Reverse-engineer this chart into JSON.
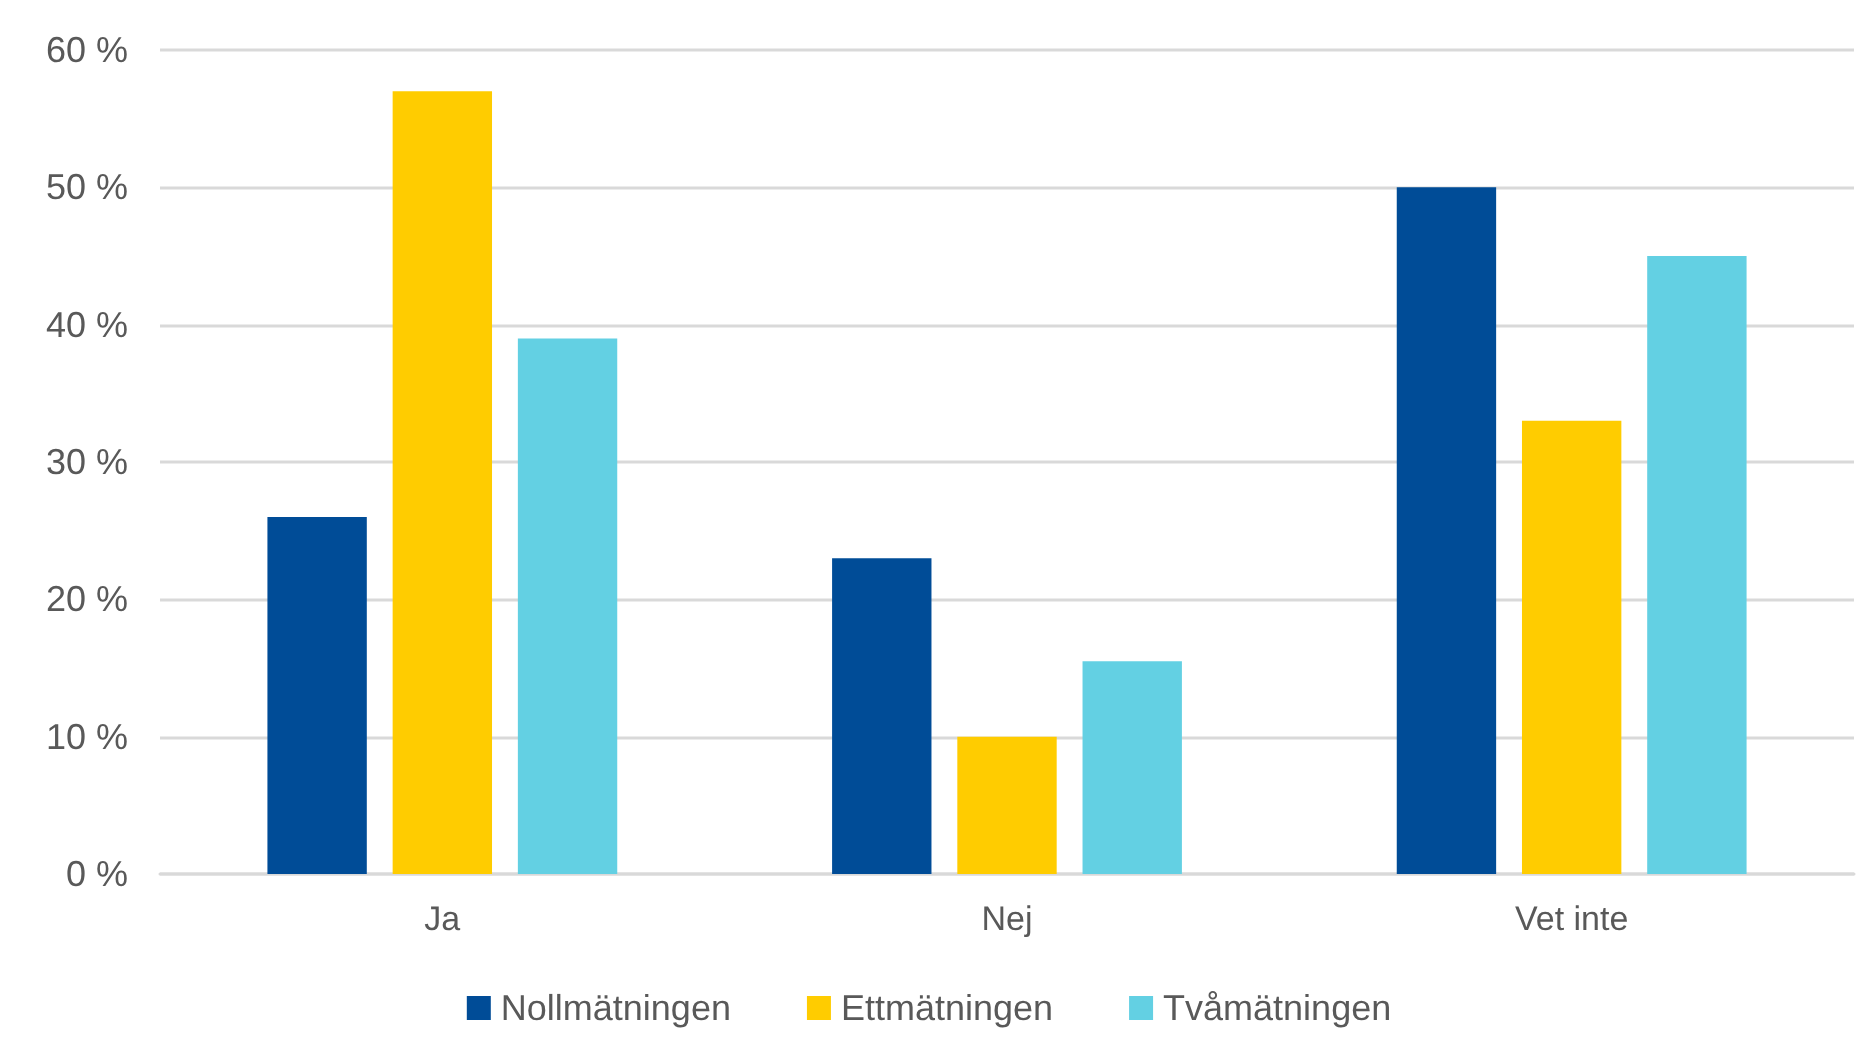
{
  "chart_data": {
    "type": "bar",
    "categories": [
      "Ja",
      "Nej",
      "Vet inte"
    ],
    "series": [
      {
        "name": "Nollmätningen",
        "color": "#004c97",
        "values": [
          26,
          23,
          50
        ]
      },
      {
        "name": "Ettmätningen",
        "color": "#ffcc00",
        "values": [
          57,
          10,
          33
        ]
      },
      {
        "name": "Tvåmätningen",
        "color": "#63d0e3",
        "values": [
          39,
          15.5,
          45
        ]
      }
    ],
    "ylim": [
      0,
      60
    ],
    "yticks": [
      {
        "value": 0,
        "label": "0 %"
      },
      {
        "value": 10,
        "label": "10 %"
      },
      {
        "value": 20,
        "label": "20 %"
      },
      {
        "value": 30,
        "label": "30 %"
      },
      {
        "value": 40,
        "label": "40 %"
      },
      {
        "value": 50,
        "label": "50 %"
      },
      {
        "value": 60,
        "label": "60 %"
      }
    ],
    "grid": "y",
    "legend": "bottom"
  }
}
